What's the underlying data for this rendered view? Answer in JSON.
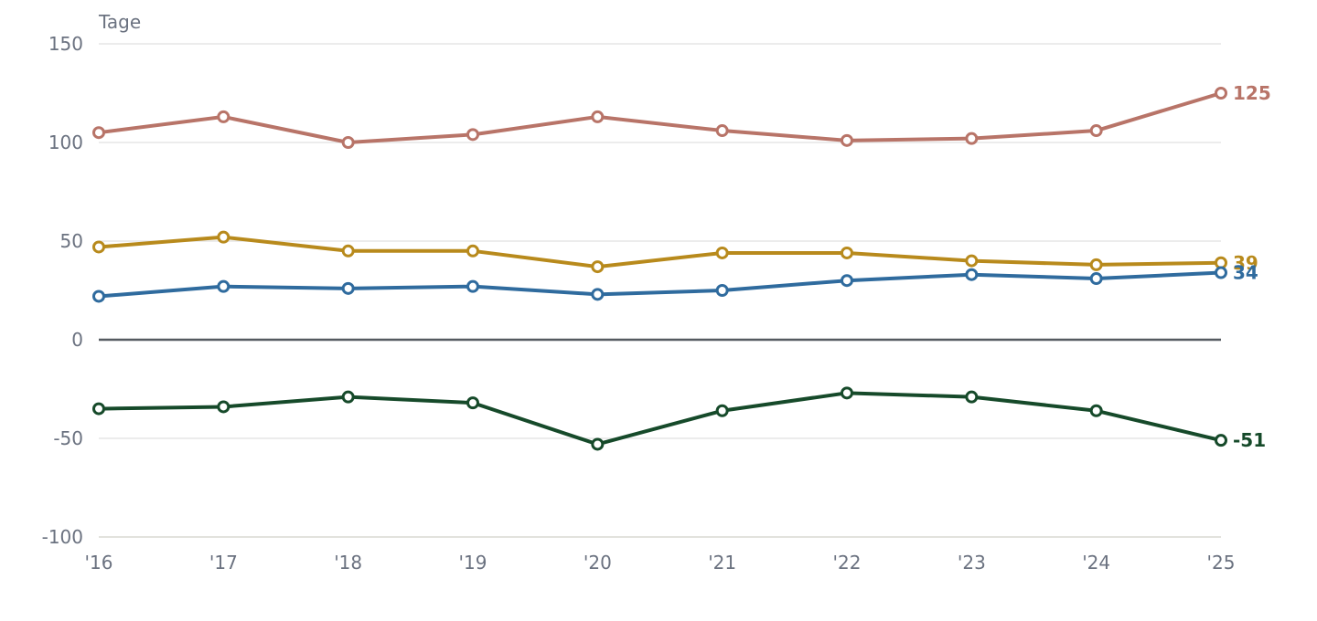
{
  "chart_data": {
    "type": "line",
    "ylabel": "Tage",
    "x": [
      "'16",
      "'17",
      "'18",
      "'19",
      "'20",
      "'21",
      "'22",
      "'23",
      "'24",
      "'25"
    ],
    "ylim": [
      -100,
      150
    ],
    "yticks": [
      "150",
      "100",
      "50",
      "0",
      "-50",
      "-100"
    ],
    "grid": true,
    "series": [
      {
        "color": "#b87468",
        "values": [
          105,
          113,
          100,
          104,
          113,
          106,
          101,
          102,
          106,
          125
        ],
        "end_label": "125"
      },
      {
        "color": "#b88a1c",
        "values": [
          47,
          52,
          45,
          45,
          37,
          44,
          44,
          40,
          38,
          39
        ],
        "end_label": "39"
      },
      {
        "color": "#2f6b9e",
        "values": [
          22,
          27,
          26,
          27,
          23,
          25,
          30,
          33,
          31,
          34
        ],
        "end_label": "34"
      },
      {
        "color": "#164a2a",
        "values": [
          -35,
          -34,
          -29,
          -32,
          -53,
          -36,
          -27,
          -29,
          -36,
          -51
        ],
        "end_label": "-51"
      }
    ]
  }
}
